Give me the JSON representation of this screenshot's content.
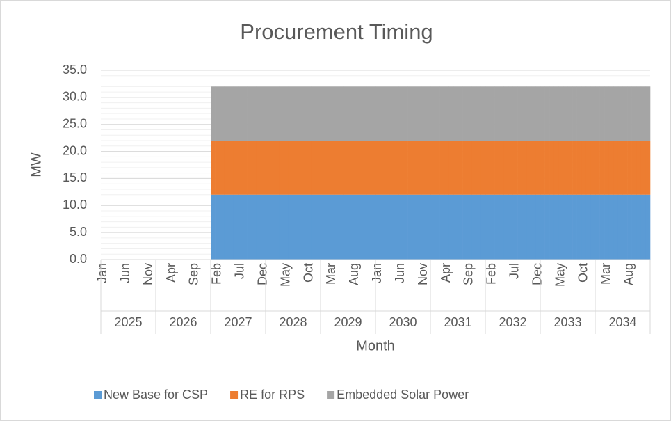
{
  "chart_data": {
    "type": "stacked_column",
    "title": "Procurement Timing",
    "y_label": "MW",
    "x_label": "Month",
    "categories": [
      "Jan",
      null,
      null,
      null,
      null,
      "Jun",
      null,
      null,
      null,
      null,
      "Nov",
      null,
      null,
      null,
      null,
      "Apr",
      null,
      null,
      null,
      null,
      "Sep",
      null,
      null,
      null,
      null,
      "Feb",
      null,
      null,
      null,
      null,
      "Jul",
      null,
      null,
      null,
      null,
      "Dec",
      null,
      null,
      null,
      null,
      "May",
      null,
      null,
      null,
      null,
      "Oct",
      null,
      null,
      null,
      null,
      "Mar",
      null,
      null,
      null,
      null,
      "Aug",
      null,
      null,
      null,
      null,
      "Jan",
      null,
      null,
      null,
      null,
      "Jun",
      null,
      null,
      null,
      null,
      "Nov",
      null,
      null,
      null,
      null,
      "Apr",
      null,
      null,
      null,
      null,
      "Sep",
      null,
      null,
      null,
      null,
      "Feb",
      null,
      null,
      null,
      null,
      "Jul",
      null,
      null,
      null,
      null,
      "Dec",
      null,
      null,
      null,
      null,
      "May",
      null,
      null,
      null,
      null,
      "Oct",
      null,
      null,
      null,
      null,
      "Mar",
      null,
      null,
      null,
      null,
      "Aug",
      null,
      null,
      null,
      null
    ],
    "year_groups": [
      "2025",
      "2026",
      "2027",
      "2028",
      "2029",
      "2030",
      "2031",
      "2032",
      "2033",
      "2034"
    ],
    "series": [
      {
        "name": "New Base for CSP",
        "color": "#5b9bd5",
        "values": [
          0,
          0,
          0,
          0,
          0,
          0,
          0,
          0,
          0,
          0,
          0,
          0,
          0,
          0,
          0,
          0,
          0,
          0,
          0,
          0,
          0,
          0,
          0,
          0,
          12,
          12,
          12,
          12,
          12,
          12,
          12,
          12,
          12,
          12,
          12,
          12,
          12,
          12,
          12,
          12,
          12,
          12,
          12,
          12,
          12,
          12,
          12,
          12,
          12,
          12,
          12,
          12,
          12,
          12,
          12,
          12,
          12,
          12,
          12,
          12,
          12,
          12,
          12,
          12,
          12,
          12,
          12,
          12,
          12,
          12,
          12,
          12,
          12,
          12,
          12,
          12,
          12,
          12,
          12,
          12,
          12,
          12,
          12,
          12,
          12,
          12,
          12,
          12,
          12,
          12,
          12,
          12,
          12,
          12,
          12,
          12,
          12,
          12,
          12,
          12,
          12,
          12,
          12,
          12,
          12,
          12,
          12,
          12,
          12,
          12,
          12,
          12,
          12,
          12,
          12,
          12,
          12,
          12,
          12,
          12
        ]
      },
      {
        "name": "RE for RPS",
        "color": "#ed7d31",
        "values": [
          0,
          0,
          0,
          0,
          0,
          0,
          0,
          0,
          0,
          0,
          0,
          0,
          0,
          0,
          0,
          0,
          0,
          0,
          0,
          0,
          0,
          0,
          0,
          0,
          10,
          10,
          10,
          10,
          10,
          10,
          10,
          10,
          10,
          10,
          10,
          10,
          10,
          10,
          10,
          10,
          10,
          10,
          10,
          10,
          10,
          10,
          10,
          10,
          10,
          10,
          10,
          10,
          10,
          10,
          10,
          10,
          10,
          10,
          10,
          10,
          10,
          10,
          10,
          10,
          10,
          10,
          10,
          10,
          10,
          10,
          10,
          10,
          10,
          10,
          10,
          10,
          10,
          10,
          10,
          10,
          10,
          10,
          10,
          10,
          10,
          10,
          10,
          10,
          10,
          10,
          10,
          10,
          10,
          10,
          10,
          10,
          10,
          10,
          10,
          10,
          10,
          10,
          10,
          10,
          10,
          10,
          10,
          10,
          10,
          10,
          10,
          10,
          10,
          10,
          10,
          10,
          10,
          10,
          10,
          10
        ]
      },
      {
        "name": "Embedded Solar Power",
        "color": "#a5a5a5",
        "values": [
          0,
          0,
          0,
          0,
          0,
          0,
          0,
          0,
          0,
          0,
          0,
          0,
          0,
          0,
          0,
          0,
          0,
          0,
          0,
          0,
          0,
          0,
          0,
          0,
          10,
          10,
          10,
          10,
          10,
          10,
          10,
          10,
          10,
          10,
          10,
          10,
          10,
          10,
          10,
          10,
          10,
          10,
          10,
          10,
          10,
          10,
          10,
          10,
          10,
          10,
          10,
          10,
          10,
          10,
          10,
          10,
          10,
          10,
          10,
          10,
          10,
          10,
          10,
          10,
          10,
          10,
          10,
          10,
          10,
          10,
          10,
          10,
          10,
          10,
          10,
          10,
          10,
          10,
          10,
          10,
          10,
          10,
          10,
          10,
          10,
          10,
          10,
          10,
          10,
          10,
          10,
          10,
          10,
          10,
          10,
          10,
          10,
          10,
          10,
          10,
          10,
          10,
          10,
          10,
          10,
          10,
          10,
          10,
          10,
          10,
          10,
          10,
          10,
          10,
          10,
          10,
          10,
          10,
          10,
          10
        ]
      }
    ],
    "ylim": [
      0,
      35
    ],
    "yticks": [
      {
        "value": 0,
        "label": "0.0"
      },
      {
        "value": 5,
        "label": "5.0"
      },
      {
        "value": 10,
        "label": "10.0"
      },
      {
        "value": 15,
        "label": "15.0"
      },
      {
        "value": 20,
        "label": "20.0"
      },
      {
        "value": 25,
        "label": "25.0"
      },
      {
        "value": 30,
        "label": "30.0"
      },
      {
        "value": 35,
        "label": "35.0"
      }
    ],
    "grid": true,
    "minor_grid": true,
    "legend": "bottom"
  }
}
